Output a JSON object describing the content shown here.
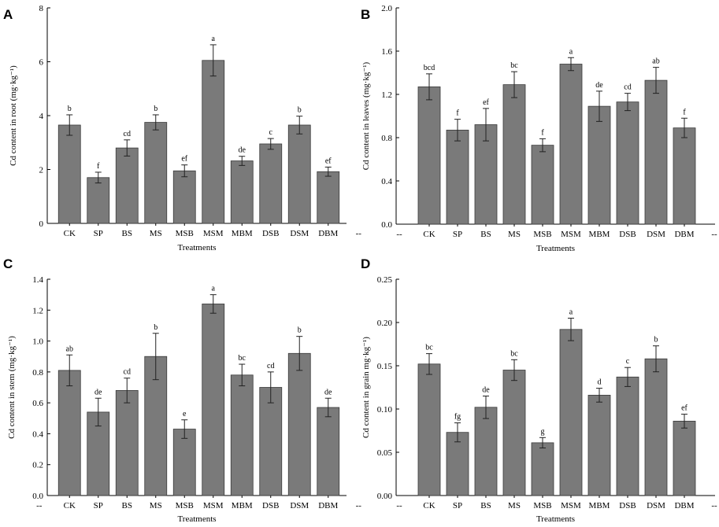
{
  "chart_data": [
    {
      "panel": "A",
      "type": "bar",
      "ylabel": "Cd content in root (mg·kg⁻¹)",
      "xlabel": "Treatments",
      "categories": [
        "CK",
        "SP",
        "BS",
        "MS",
        "MSB",
        "MSM",
        "MBM",
        "DSB",
        "DSM",
        "DBM"
      ],
      "values": [
        3.65,
        1.7,
        2.8,
        3.75,
        1.95,
        6.05,
        2.32,
        2.95,
        3.65,
        1.92
      ],
      "errors": [
        0.38,
        0.2,
        0.3,
        0.28,
        0.22,
        0.58,
        0.17,
        0.2,
        0.33,
        0.17
      ],
      "letters": [
        "b",
        "f",
        "cd",
        "b",
        "ef",
        "a",
        "de",
        "c",
        "b",
        "ef"
      ],
      "ylim": [
        0,
        8
      ],
      "yticks": [
        "0",
        "2",
        "4",
        "6",
        "8"
      ],
      "edge_label": "--"
    },
    {
      "panel": "B",
      "type": "bar",
      "ylabel": "Cd content in leaves (mg·kg⁻¹)",
      "xlabel": "Treatments",
      "categories": [
        "CK",
        "SP",
        "BS",
        "MS",
        "MSB",
        "MSM",
        "MBM",
        "DSB",
        "DSM",
        "DBM"
      ],
      "values": [
        1.27,
        0.87,
        0.92,
        1.29,
        0.73,
        1.48,
        1.09,
        1.13,
        1.33,
        0.89
      ],
      "errors": [
        0.12,
        0.1,
        0.15,
        0.12,
        0.06,
        0.06,
        0.14,
        0.08,
        0.12,
        0.09
      ],
      "letters": [
        "bcd",
        "f",
        "ef",
        "bc",
        "f",
        "a",
        "de",
        "cd",
        "ab",
        "f"
      ],
      "ylim": [
        0,
        2.0
      ],
      "yticks": [
        "0.0",
        "0.4",
        "0.8",
        "1.2",
        "1.6",
        "2.0"
      ],
      "edge_label": "--"
    },
    {
      "panel": "C",
      "type": "bar",
      "ylabel": "Cd content in stem (mg·kg⁻¹)",
      "xlabel": "Treatments",
      "categories": [
        "CK",
        "SP",
        "BS",
        "MS",
        "MSB",
        "MSM",
        "MBM",
        "DSB",
        "DSM",
        "DBM"
      ],
      "values": [
        0.81,
        0.54,
        0.68,
        0.9,
        0.43,
        1.24,
        0.78,
        0.7,
        0.92,
        0.57
      ],
      "errors": [
        0.1,
        0.09,
        0.08,
        0.15,
        0.06,
        0.06,
        0.07,
        0.1,
        0.11,
        0.06
      ],
      "letters": [
        "ab",
        "de",
        "cd",
        "b",
        "e",
        "a",
        "bc",
        "cd",
        "b",
        "de"
      ],
      "ylim": [
        0,
        1.4
      ],
      "yticks": [
        "0.0",
        "0.2",
        "0.4",
        "0.6",
        "0.8",
        "1.0",
        "1.2",
        "1.4"
      ],
      "edge_label": "--"
    },
    {
      "panel": "D",
      "type": "bar",
      "ylabel": "Cd content in grain mg·kg⁻¹)",
      "xlabel": "Treatments",
      "categories": [
        "CK",
        "SP",
        "BS",
        "MS",
        "MSB",
        "MSM",
        "MBM",
        "DSB",
        "DSM",
        "DBM"
      ],
      "values": [
        0.152,
        0.073,
        0.102,
        0.145,
        0.061,
        0.192,
        0.116,
        0.137,
        0.158,
        0.086
      ],
      "errors": [
        0.012,
        0.011,
        0.013,
        0.012,
        0.006,
        0.013,
        0.008,
        0.011,
        0.015,
        0.008
      ],
      "letters": [
        "bc",
        "fg",
        "de",
        "bc",
        "g",
        "a",
        "d",
        "c",
        "b",
        "ef"
      ],
      "ylim": [
        0,
        0.25
      ],
      "yticks": [
        "0.00",
        "0.05",
        "0.10",
        "0.15",
        "0.20",
        "0.25"
      ],
      "edge_label": "--"
    }
  ]
}
